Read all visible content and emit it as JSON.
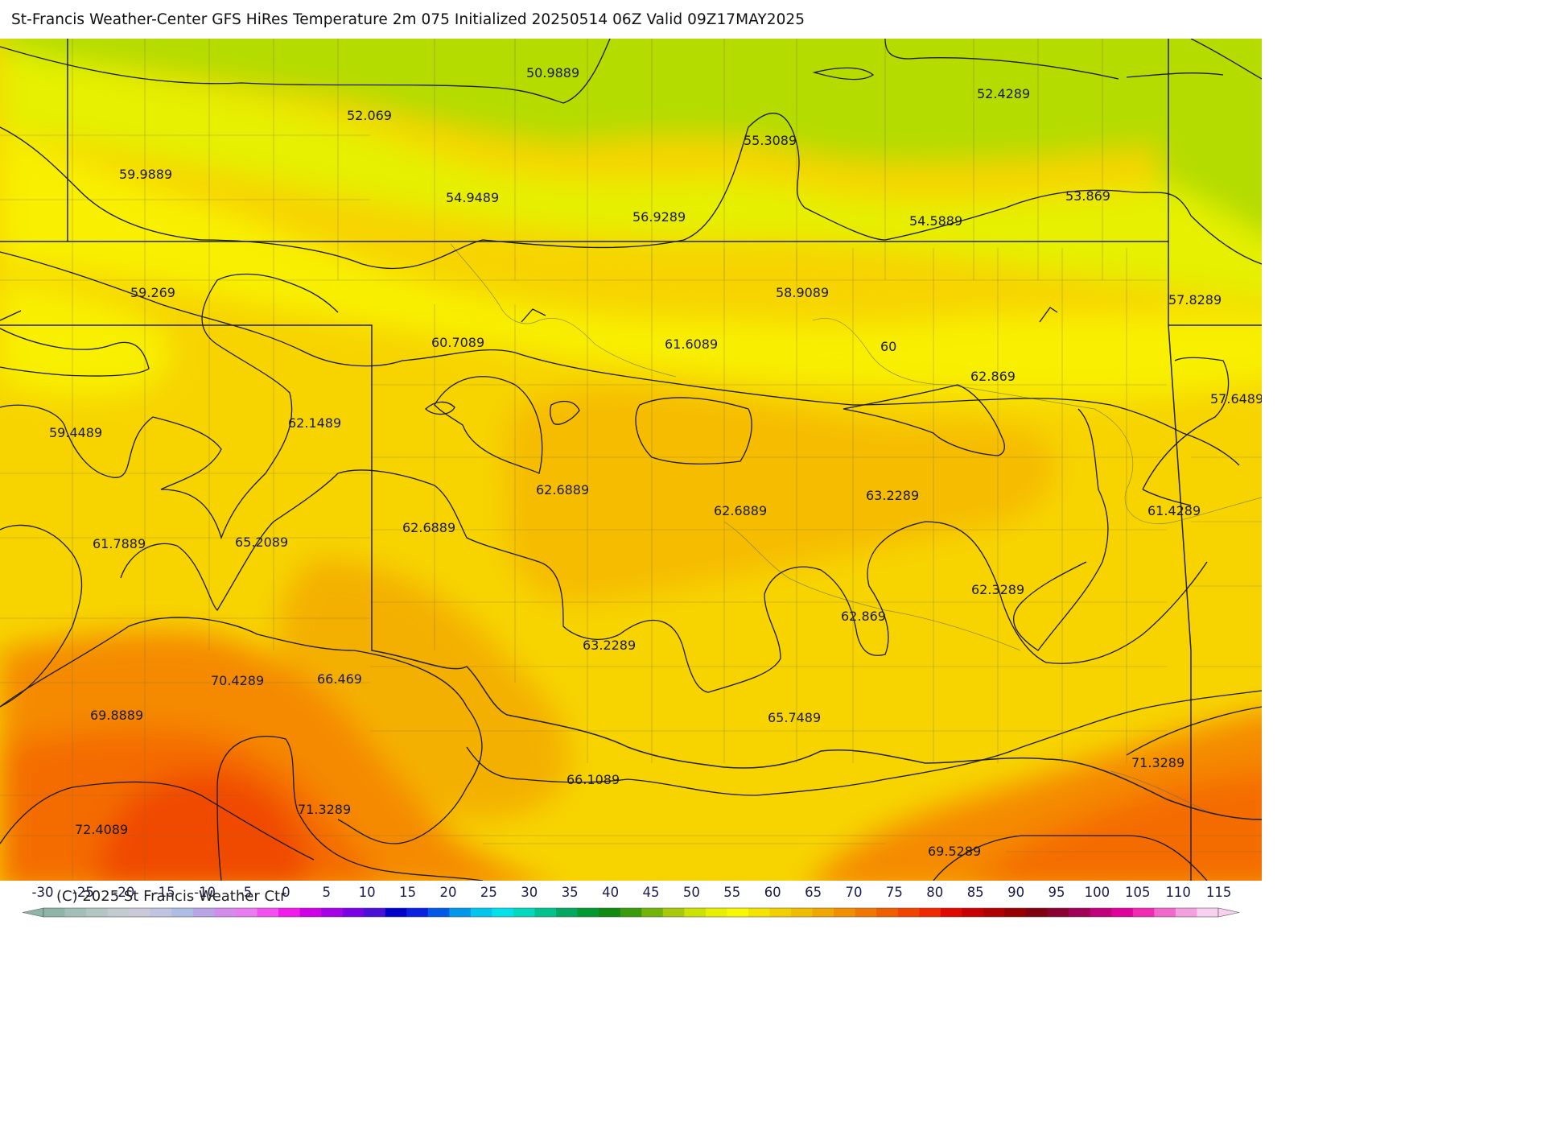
{
  "header": {
    "title": "St-Francis Weather-Center GFS HiRes Temperature 2m  075 Initialized 20250514 06Z Valid 09Z17MAY2025"
  },
  "map": {
    "contour_labels": [
      {
        "text": "50.9889",
        "value": 50.9889
      },
      {
        "text": "52.069",
        "value": 52.069
      },
      {
        "text": "52.4289",
        "value": 52.4289
      },
      {
        "text": "55.3089",
        "value": 55.3089
      },
      {
        "text": "59.9889",
        "value": 59.9889
      },
      {
        "text": "54.9489",
        "value": 54.9489
      },
      {
        "text": "56.9289",
        "value": 56.9289
      },
      {
        "text": "54.5889",
        "value": 54.5889
      },
      {
        "text": "53.869",
        "value": 53.869
      },
      {
        "text": "59.269",
        "value": 59.269
      },
      {
        "text": "58.9089",
        "value": 58.9089
      },
      {
        "text": "57.8289",
        "value": 57.8289
      },
      {
        "text": "60.7089",
        "value": 60.7089
      },
      {
        "text": "61.6089",
        "value": 61.6089
      },
      {
        "text": "60",
        "value": 60
      },
      {
        "text": "62.869",
        "value": 62.869
      },
      {
        "text": "57.6489",
        "value": 57.6489
      },
      {
        "text": "59.4489",
        "value": 59.4489
      },
      {
        "text": "62.1489",
        "value": 62.1489
      },
      {
        "text": "62.6889",
        "value": 62.6889
      },
      {
        "text": "62.6889",
        "value": 62.6889
      },
      {
        "text": "63.2289",
        "value": 63.2289
      },
      {
        "text": "61.4289",
        "value": 61.4289
      },
      {
        "text": "62.6889",
        "value": 62.6889
      },
      {
        "text": "61.7889",
        "value": 61.7889
      },
      {
        "text": "65.2089",
        "value": 65.2089
      },
      {
        "text": "62.3289",
        "value": 62.3289
      },
      {
        "text": "62.869",
        "value": 62.869
      },
      {
        "text": "63.2289",
        "value": 63.2289
      },
      {
        "text": "70.4289",
        "value": 70.4289
      },
      {
        "text": "66.469",
        "value": 66.469
      },
      {
        "text": "69.8889",
        "value": 69.8889
      },
      {
        "text": "65.7489",
        "value": 65.7489
      },
      {
        "text": "66.1089",
        "value": 66.1089
      },
      {
        "text": "71.3289",
        "value": 71.3289
      },
      {
        "text": "71.3289",
        "value": 71.3289
      },
      {
        "text": "72.4089",
        "value": 72.4089
      },
      {
        "text": "69.5289",
        "value": 69.5289
      }
    ]
  },
  "legend": {
    "ticks": [
      "-30",
      "-25",
      "-20",
      "-15",
      "-10",
      "-5",
      "0",
      "5",
      "10",
      "15",
      "20",
      "25",
      "30",
      "35",
      "40",
      "45",
      "50",
      "55",
      "60",
      "65",
      "70",
      "75",
      "80",
      "85",
      "90",
      "95",
      "100",
      "105",
      "110",
      "115"
    ],
    "colors": [
      "#8fb5a8",
      "#a2c0b8",
      "#b2c6c4",
      "#c2cbd0",
      "#c9c9d9",
      "#c0c4e0",
      "#aebde6",
      "#b9a4e6",
      "#d48cec",
      "#e87cf0",
      "#f44ff0",
      "#f31aee",
      "#d000e6",
      "#a800e6",
      "#7a00e6",
      "#4a10d8",
      "#0000cc",
      "#0a20e0",
      "#0058e6",
      "#0098ea",
      "#00c6ee",
      "#00e2ea",
      "#00d8c0",
      "#00c28e",
      "#00a860",
      "#009a30",
      "#108a10",
      "#3a9c0a",
      "#72b40a",
      "#a8c80a",
      "#cce200",
      "#e8f000",
      "#f8f800",
      "#f4e400",
      "#f2d000",
      "#f0bc00",
      "#f0a800",
      "#f09000",
      "#f07800",
      "#f05e00",
      "#f04400",
      "#f02800",
      "#e00800",
      "#c80000",
      "#b00000",
      "#960000",
      "#800010",
      "#8a0030",
      "#a00058",
      "#c0007a",
      "#e0009c",
      "#f02ab4",
      "#f068cc",
      "#f4a0e0",
      "#f8d0f0"
    ],
    "copyright": "(C) 2025 St Francis Weather Ctr"
  }
}
